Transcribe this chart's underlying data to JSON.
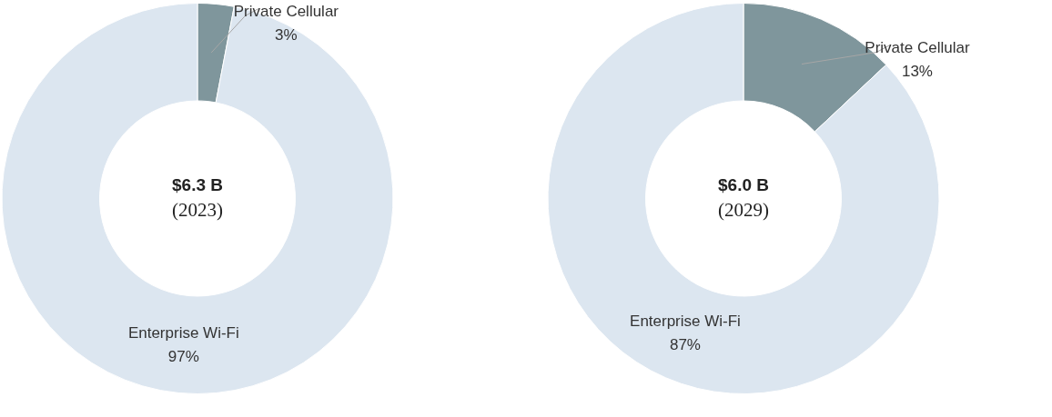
{
  "chart_data": [
    {
      "type": "donut",
      "title": "$6.3 B",
      "subtitle": "(2023)",
      "categories": [
        "Private Cellular",
        "Enterprise Wi-Fi"
      ],
      "values": [
        3,
        97
      ],
      "colors": [
        "#7f969c",
        "#dce6f0"
      ],
      "value_labels": [
        "3%",
        "97%"
      ],
      "legend": false
    },
    {
      "type": "donut",
      "title": "$6.0 B",
      "subtitle": "(2029)",
      "categories": [
        "Private Cellular",
        "Enterprise Wi-Fi"
      ],
      "values": [
        13,
        87
      ],
      "colors": [
        "#7f969c",
        "#dce6f0"
      ],
      "value_labels": [
        "13%",
        "87%"
      ],
      "legend": false
    }
  ]
}
